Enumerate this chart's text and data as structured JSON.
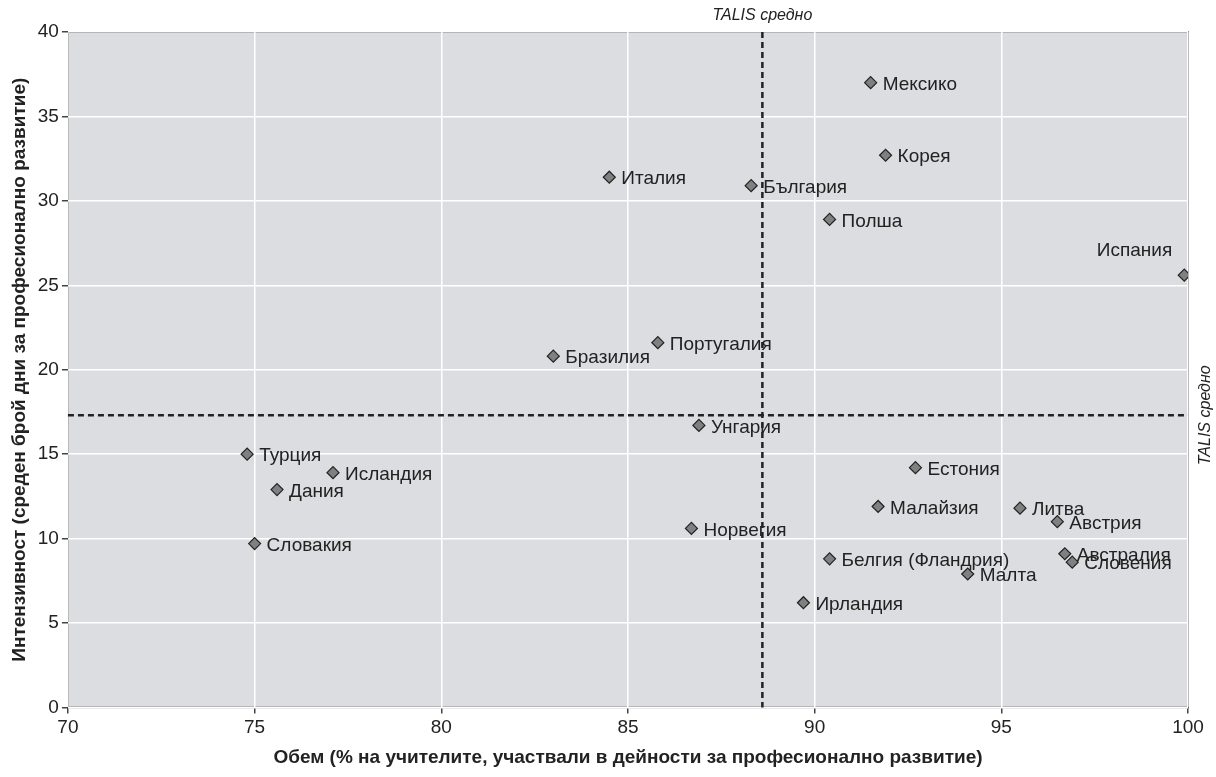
{
  "chart_data": {
    "type": "scatter",
    "xlabel": "Обем (% на учителите, участвали в дейности за професионално развитие)",
    "ylabel": "Интензивност (среден брой дни за професионално развитие)",
    "xlim": [
      70,
      100
    ],
    "xticks": [
      70,
      75,
      80,
      85,
      90,
      95,
      100
    ],
    "ylim": [
      0,
      40
    ],
    "yticks": [
      0,
      5,
      10,
      15,
      20,
      25,
      30,
      35,
      40
    ],
    "grid": true,
    "legend": false,
    "marker": "diamond",
    "ref_lines": [
      {
        "axis": "x",
        "value": 88.6,
        "label": "TALIS средно",
        "line_style": "dashed",
        "color": "#222222"
      },
      {
        "axis": "y",
        "value": 17.3,
        "label": "TALIS средно",
        "line_style": "dashed",
        "color": "#222222"
      }
    ],
    "series": [
      {
        "name": "Мексико",
        "color": "#808080",
        "x": [
          91.5
        ],
        "values": [
          37.0
        ]
      },
      {
        "name": "Корея",
        "color": "#808080",
        "x": [
          91.9
        ],
        "values": [
          32.7
        ]
      },
      {
        "name": "Италия",
        "color": "#808080",
        "x": [
          84.5
        ],
        "values": [
          31.4
        ]
      },
      {
        "name": "България",
        "color": "#808080",
        "x": [
          88.3
        ],
        "values": [
          30.9
        ]
      },
      {
        "name": "Полша",
        "color": "#808080",
        "x": [
          90.4
        ],
        "values": [
          28.9
        ]
      },
      {
        "name": "Испания",
        "color": "#808080",
        "x": [
          99.9
        ],
        "values": [
          25.6
        ]
      },
      {
        "name": "Португалия",
        "color": "#808080",
        "x": [
          85.8
        ],
        "values": [
          21.6
        ]
      },
      {
        "name": "Бразилия",
        "color": "#808080",
        "x": [
          83.0
        ],
        "values": [
          20.8
        ]
      },
      {
        "name": "Унгария",
        "color": "#808080",
        "x": [
          86.9
        ],
        "values": [
          16.7
        ]
      },
      {
        "name": "Турция",
        "color": "#808080",
        "x": [
          74.8
        ],
        "values": [
          15.0
        ]
      },
      {
        "name": "Исландия",
        "color": "#808080",
        "x": [
          77.1
        ],
        "values": [
          13.9
        ]
      },
      {
        "name": "Дания",
        "color": "#808080",
        "x": [
          75.6
        ],
        "values": [
          12.9
        ]
      },
      {
        "name": "Словакия",
        "color": "#808080",
        "x": [
          75.0
        ],
        "values": [
          9.7
        ]
      },
      {
        "name": "Естония",
        "color": "#808080",
        "x": [
          92.7
        ],
        "values": [
          14.2
        ]
      },
      {
        "name": "Малайзия",
        "color": "#808080",
        "x": [
          91.7
        ],
        "values": [
          11.9
        ]
      },
      {
        "name": "Литва",
        "color": "#808080",
        "x": [
          95.5
        ],
        "values": [
          11.8
        ]
      },
      {
        "name": "Австрия",
        "color": "#808080",
        "x": [
          96.5
        ],
        "values": [
          11.0
        ]
      },
      {
        "name": "Норвегия",
        "color": "#808080",
        "x": [
          86.7
        ],
        "values": [
          10.6
        ]
      },
      {
        "name": "Белгия (Фландрия)",
        "color": "#808080",
        "x": [
          90.4
        ],
        "values": [
          8.8
        ]
      },
      {
        "name": "Австралия",
        "color": "#808080",
        "x": [
          96.7
        ],
        "values": [
          9.1
        ]
      },
      {
        "name": "Словения",
        "color": "#808080",
        "x": [
          96.9
        ],
        "values": [
          8.6
        ]
      },
      {
        "name": "Малта",
        "color": "#808080",
        "x": [
          94.1
        ],
        "values": [
          7.9
        ]
      },
      {
        "name": "Ирландия",
        "color": "#808080",
        "x": [
          89.7
        ],
        "values": [
          6.2
        ]
      }
    ]
  }
}
